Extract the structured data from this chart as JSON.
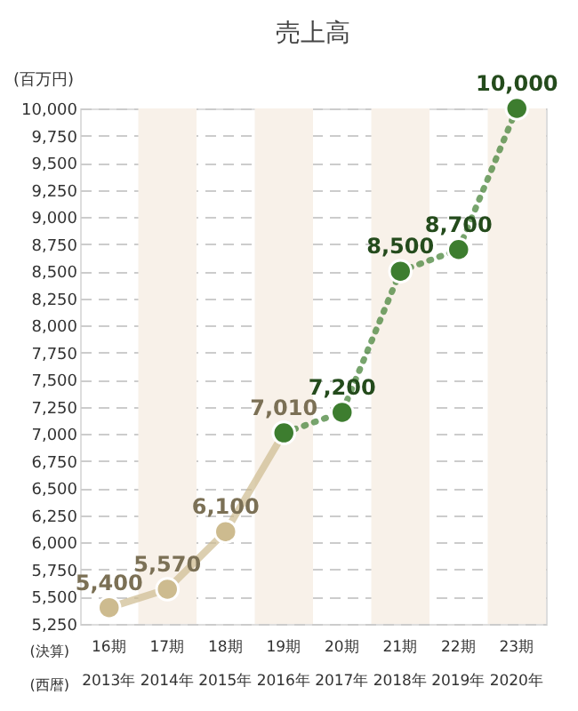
{
  "chart_data": {
    "type": "line",
    "title": "売上高",
    "ylabel": "(百万円)",
    "categories": [
      "16期\n2013年",
      "17期\n2014年",
      "18期\n2015年",
      "19期\n2016年",
      "20期\n2017年",
      "21期\n2018年",
      "22期\n2019年",
      "23期\n2020年"
    ],
    "series": [
      {
        "color": "#cdbb8f",
        "values": [
          5400,
          5570,
          6100,
          7010,
          null,
          null,
          null,
          null
        ],
        "value_labels": [
          "5,400",
          "5,570",
          "6,100",
          "7,010",
          null,
          null,
          null,
          null
        ],
        "line_style": "solid"
      },
      {
        "color": "#3d7d2f",
        "values": [
          null,
          null,
          null,
          7010,
          7200,
          8500,
          8700,
          10000
        ],
        "value_labels": [
          null,
          null,
          null,
          null,
          "7,200",
          "8,500",
          "8,700",
          "10,000"
        ],
        "line_style": "dotted"
      }
    ],
    "ylim": [
      5250,
      10000
    ],
    "yticks": [
      {
        "value": 5250,
        "label": "5,250"
      },
      {
        "value": 5500,
        "label": "5,500"
      },
      {
        "value": 5750,
        "label": "5,750"
      },
      {
        "value": 6000,
        "label": "6,000"
      },
      {
        "value": 6250,
        "label": "6,250"
      },
      {
        "value": 6500,
        "label": "6,500"
      },
      {
        "value": 6750,
        "label": "6,750"
      },
      {
        "value": 7000,
        "label": "7,000"
      },
      {
        "value": 7250,
        "label": "7,250"
      },
      {
        "value": 7500,
        "label": "7,500"
      },
      {
        "value": 7750,
        "label": "7,750"
      },
      {
        "value": 8000,
        "label": "8,000"
      },
      {
        "value": 8250,
        "label": "8,250"
      },
      {
        "value": 8500,
        "label": "8,500"
      },
      {
        "value": 8750,
        "label": "8,750"
      },
      {
        "value": 9000,
        "label": "9,000"
      },
      {
        "value": 9250,
        "label": "9,250"
      },
      {
        "value": 9500,
        "label": "9,500"
      },
      {
        "value": 9750,
        "label": "9,750"
      },
      {
        "value": 10000,
        "label": "10,000"
      }
    ],
    "grid": "y",
    "marker": "circle",
    "bands": [
      {
        "axis": "x",
        "from": "17期\n2014年",
        "to": "17期\n2014年",
        "color": "#f8f1e9"
      },
      {
        "axis": "x",
        "from": "19期\n2016年",
        "to": "19期\n2016年",
        "color": "#f8f1e9"
      },
      {
        "axis": "x",
        "from": "21期\n2018年",
        "to": "21期\n2018年",
        "color": "#f8f1e9"
      },
      {
        "axis": "x",
        "from": "23期\n2020年",
        "to": "23期\n2020年",
        "color": "#f8f1e9"
      }
    ],
    "annotations": [
      "(決算)",
      "(西暦)"
    ]
  }
}
